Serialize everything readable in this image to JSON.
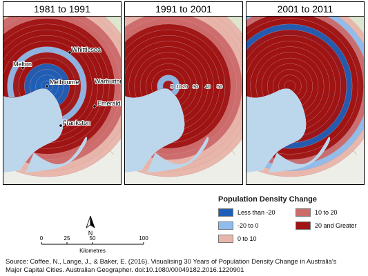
{
  "panels": [
    {
      "title": "1981 to 1991",
      "rings": [
        "minus20",
        "minus20",
        "minus20",
        "minus20",
        "20up",
        "20up",
        "minus20_0",
        "20up",
        "20up",
        "20up",
        "20up",
        "20up",
        "10_20",
        "10_20",
        "0_10",
        "0_10"
      ]
    },
    {
      "title": "1991 to 2001",
      "rings": [
        "20up",
        "minus20_0",
        "20up",
        "20up",
        "20up",
        "20up",
        "20up",
        "20up",
        "20up",
        "20up",
        "20up",
        "10_20",
        "10_20",
        "0_10",
        "0_10",
        "0_10"
      ]
    },
    {
      "title": "2001 to 2011",
      "rings": [
        "20up",
        "20up",
        "20up",
        "20up",
        "20up",
        "20up",
        "20up",
        "20up",
        "20up",
        "20up",
        "minus20",
        "20up",
        "20up",
        "10_20",
        "minus20_0",
        "0_10"
      ]
    }
  ],
  "places": [
    {
      "name": "Whittlesea"
    },
    {
      "name": "Melton"
    },
    {
      "name": "Melbourne"
    },
    {
      "name": "Warburton"
    },
    {
      "name": "Emerald"
    },
    {
      "name": "Frankston"
    }
  ],
  "ring_labels": [
    "5",
    "10",
    "20",
    "30",
    "40",
    "50"
  ],
  "legend": {
    "title": "Population Density Change",
    "items": [
      {
        "key": "minus20",
        "label": "Less than -20",
        "color": "#1f5fb8"
      },
      {
        "key": "10_20",
        "label": "10 to 20",
        "color": "#cd6a6a"
      },
      {
        "key": "minus20_0",
        "label": "-20 to 0",
        "color": "#8ebcec"
      },
      {
        "key": "20up",
        "label": "20 and Greater",
        "color": "#a01414"
      },
      {
        "key": "0_10",
        "label": "0 to 10",
        "color": "#e8b5aa"
      }
    ]
  },
  "scale": {
    "ticks": [
      "0",
      "25",
      "50",
      "100"
    ],
    "unit": "Kilometres",
    "north": "N"
  },
  "source": {
    "line1": "Source: Coffee, N., Lange, J., & Baker, E. (2016). Visualising 30 Years of Population Density Change in Australia's",
    "line2": "Major Capital Cities. Australian Geographer. doi:10.1080/00049182.2016.1220901"
  }
}
